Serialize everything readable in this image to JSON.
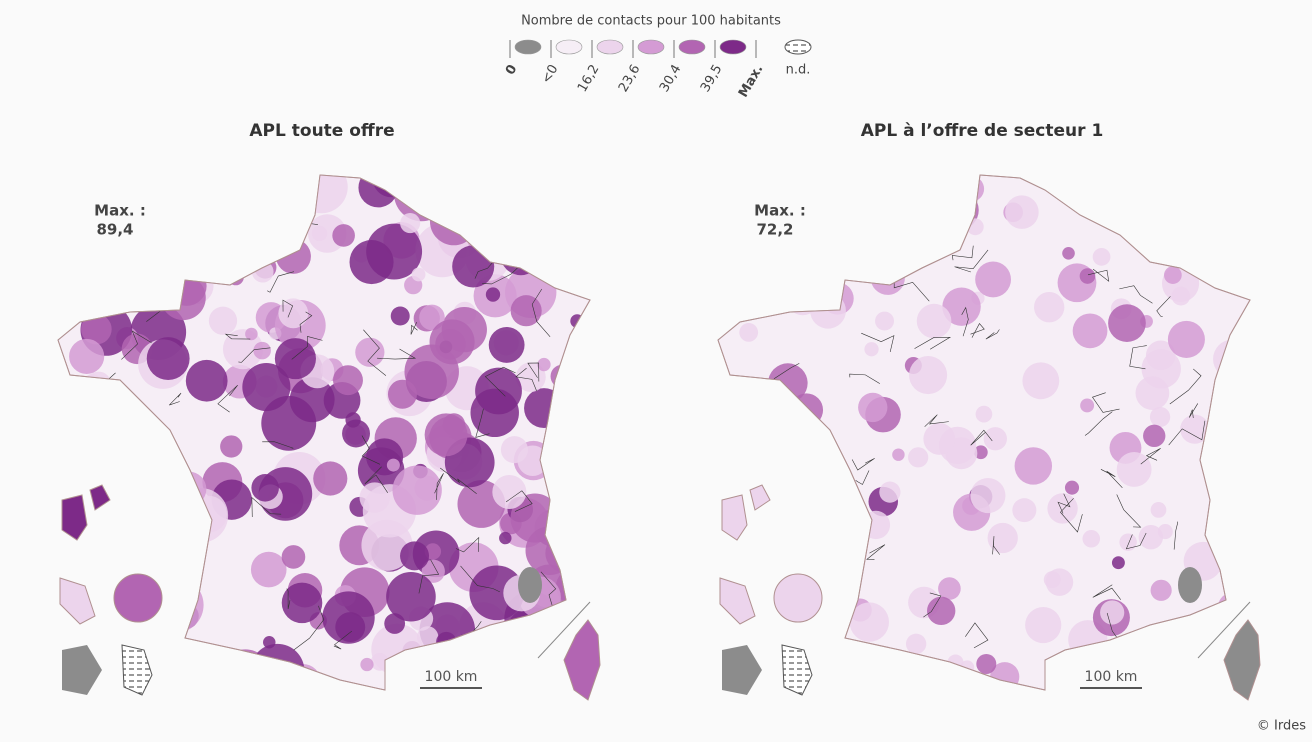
{
  "legend": {
    "title": "Nombre de contacts pour 100 habitants",
    "labels": [
      "0",
      "<0",
      "16,2",
      "23,6",
      "30,4",
      "39,5",
      "Max."
    ],
    "colors": [
      "#8c8c8c",
      "#f6eef6",
      "#ecd4ec",
      "#d49bd4",
      "#b265b2",
      "#7d2a88"
    ],
    "nd": "n.d."
  },
  "maps": [
    {
      "title": "APL toute offre",
      "max_label": "Max. :",
      "max_value": "89,4",
      "scale": "100 km"
    },
    {
      "title": "APL à l’offre de secteur 1",
      "max_label": "Max. :",
      "max_value": "72,2",
      "scale": "100 km"
    }
  ],
  "credit": "© Irdes"
}
